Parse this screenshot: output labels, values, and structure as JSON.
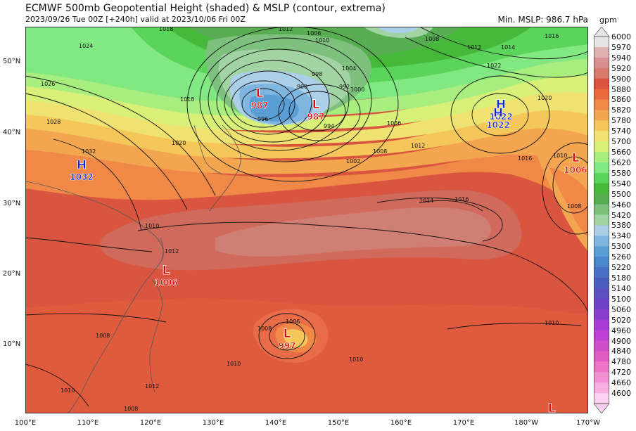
{
  "header": {
    "title": "ECMWF 500mb Geopotential Height (shaded) & MSLP (contour, extrema)",
    "subtitle": "2023/09/26 Tue 00Z [+240h] valid at 2023/10/06 Fri 00Z",
    "min_mslp": "Min. MSLP: 986.7 hPa"
  },
  "colorbar": {
    "unit": "gpm",
    "levels": [
      "6000",
      "5970",
      "5940",
      "5920",
      "5900",
      "5880",
      "5860",
      "5820",
      "5780",
      "5740",
      "5700",
      "5660",
      "5620",
      "5580",
      "5540",
      "5500",
      "5460",
      "5420",
      "5380",
      "5340",
      "5300",
      "5260",
      "5220",
      "5180",
      "5140",
      "5100",
      "5060",
      "5020",
      "4960",
      "4900",
      "4840",
      "4780",
      "4720",
      "4660",
      "4600"
    ],
    "colors": [
      "#e6e6e6",
      "#e0b3b3",
      "#d99090",
      "#d97a6e",
      "#d9553f",
      "#ea6a3d",
      "#f08848",
      "#f3a550",
      "#f5c75a",
      "#f0e270",
      "#d8ef78",
      "#a8ee7e",
      "#82e882",
      "#5bd45b",
      "#46b83a",
      "#58ad52",
      "#7ec17e",
      "#a2d3a2",
      "#aacfe6",
      "#7fb6e0",
      "#5a9ed6",
      "#4a86cc",
      "#4870c4",
      "#4a5cc0",
      "#5a4ec0",
      "#6e42c6",
      "#8a3ed0",
      "#a83ad8",
      "#c040d8",
      "#d050cc",
      "#e05cc0",
      "#ee74c8",
      "#f290d4",
      "#f8aee0",
      "#fcd0ee"
    ]
  },
  "map": {
    "lat_labels": [
      "50°N",
      "40°N",
      "30°N",
      "20°N",
      "10°N"
    ],
    "lon_labels": [
      "100°E",
      "110°E",
      "120°E",
      "130°E",
      "140°E",
      "150°E",
      "160°E",
      "170°E",
      "180°W",
      "170°W"
    ],
    "extrema": [
      {
        "type": "L",
        "value": "987",
        "color": "#e00000"
      },
      {
        "type": "L",
        "value": "987",
        "color": "#e00000"
      },
      {
        "type": "H",
        "value": "1022",
        "color": "#0a1ee0"
      },
      {
        "type": "H",
        "value": "1022",
        "color": "#0a1ee0"
      },
      {
        "type": "H",
        "value": "1032",
        "color": "#0a1ee0"
      },
      {
        "type": "L",
        "value": "1006",
        "color": "#e00000"
      },
      {
        "type": "L",
        "value": "1006",
        "color": "#e00000"
      },
      {
        "type": "L",
        "value": "997",
        "color": "#e00000"
      },
      {
        "type": "L",
        "value": "",
        "color": "#e00000"
      }
    ],
    "contour_labels": [
      "1018",
      "1012",
      "1006",
      "1010",
      "1008",
      "1012",
      "1014",
      "1016",
      "1024",
      "1026",
      "1028",
      "1020",
      "1018",
      "1004",
      "1000",
      "998",
      "992",
      "990",
      "996",
      "994",
      "1006",
      "1002",
      "1008",
      "1012",
      "1010",
      "1014",
      "1016",
      "1020",
      "1022",
      "1032",
      "1010",
      "1008",
      "1016",
      "1012",
      "1008",
      "1006",
      "1008",
      "1010",
      "1010",
      "1012",
      "1010",
      "1008",
      "1010"
    ]
  }
}
